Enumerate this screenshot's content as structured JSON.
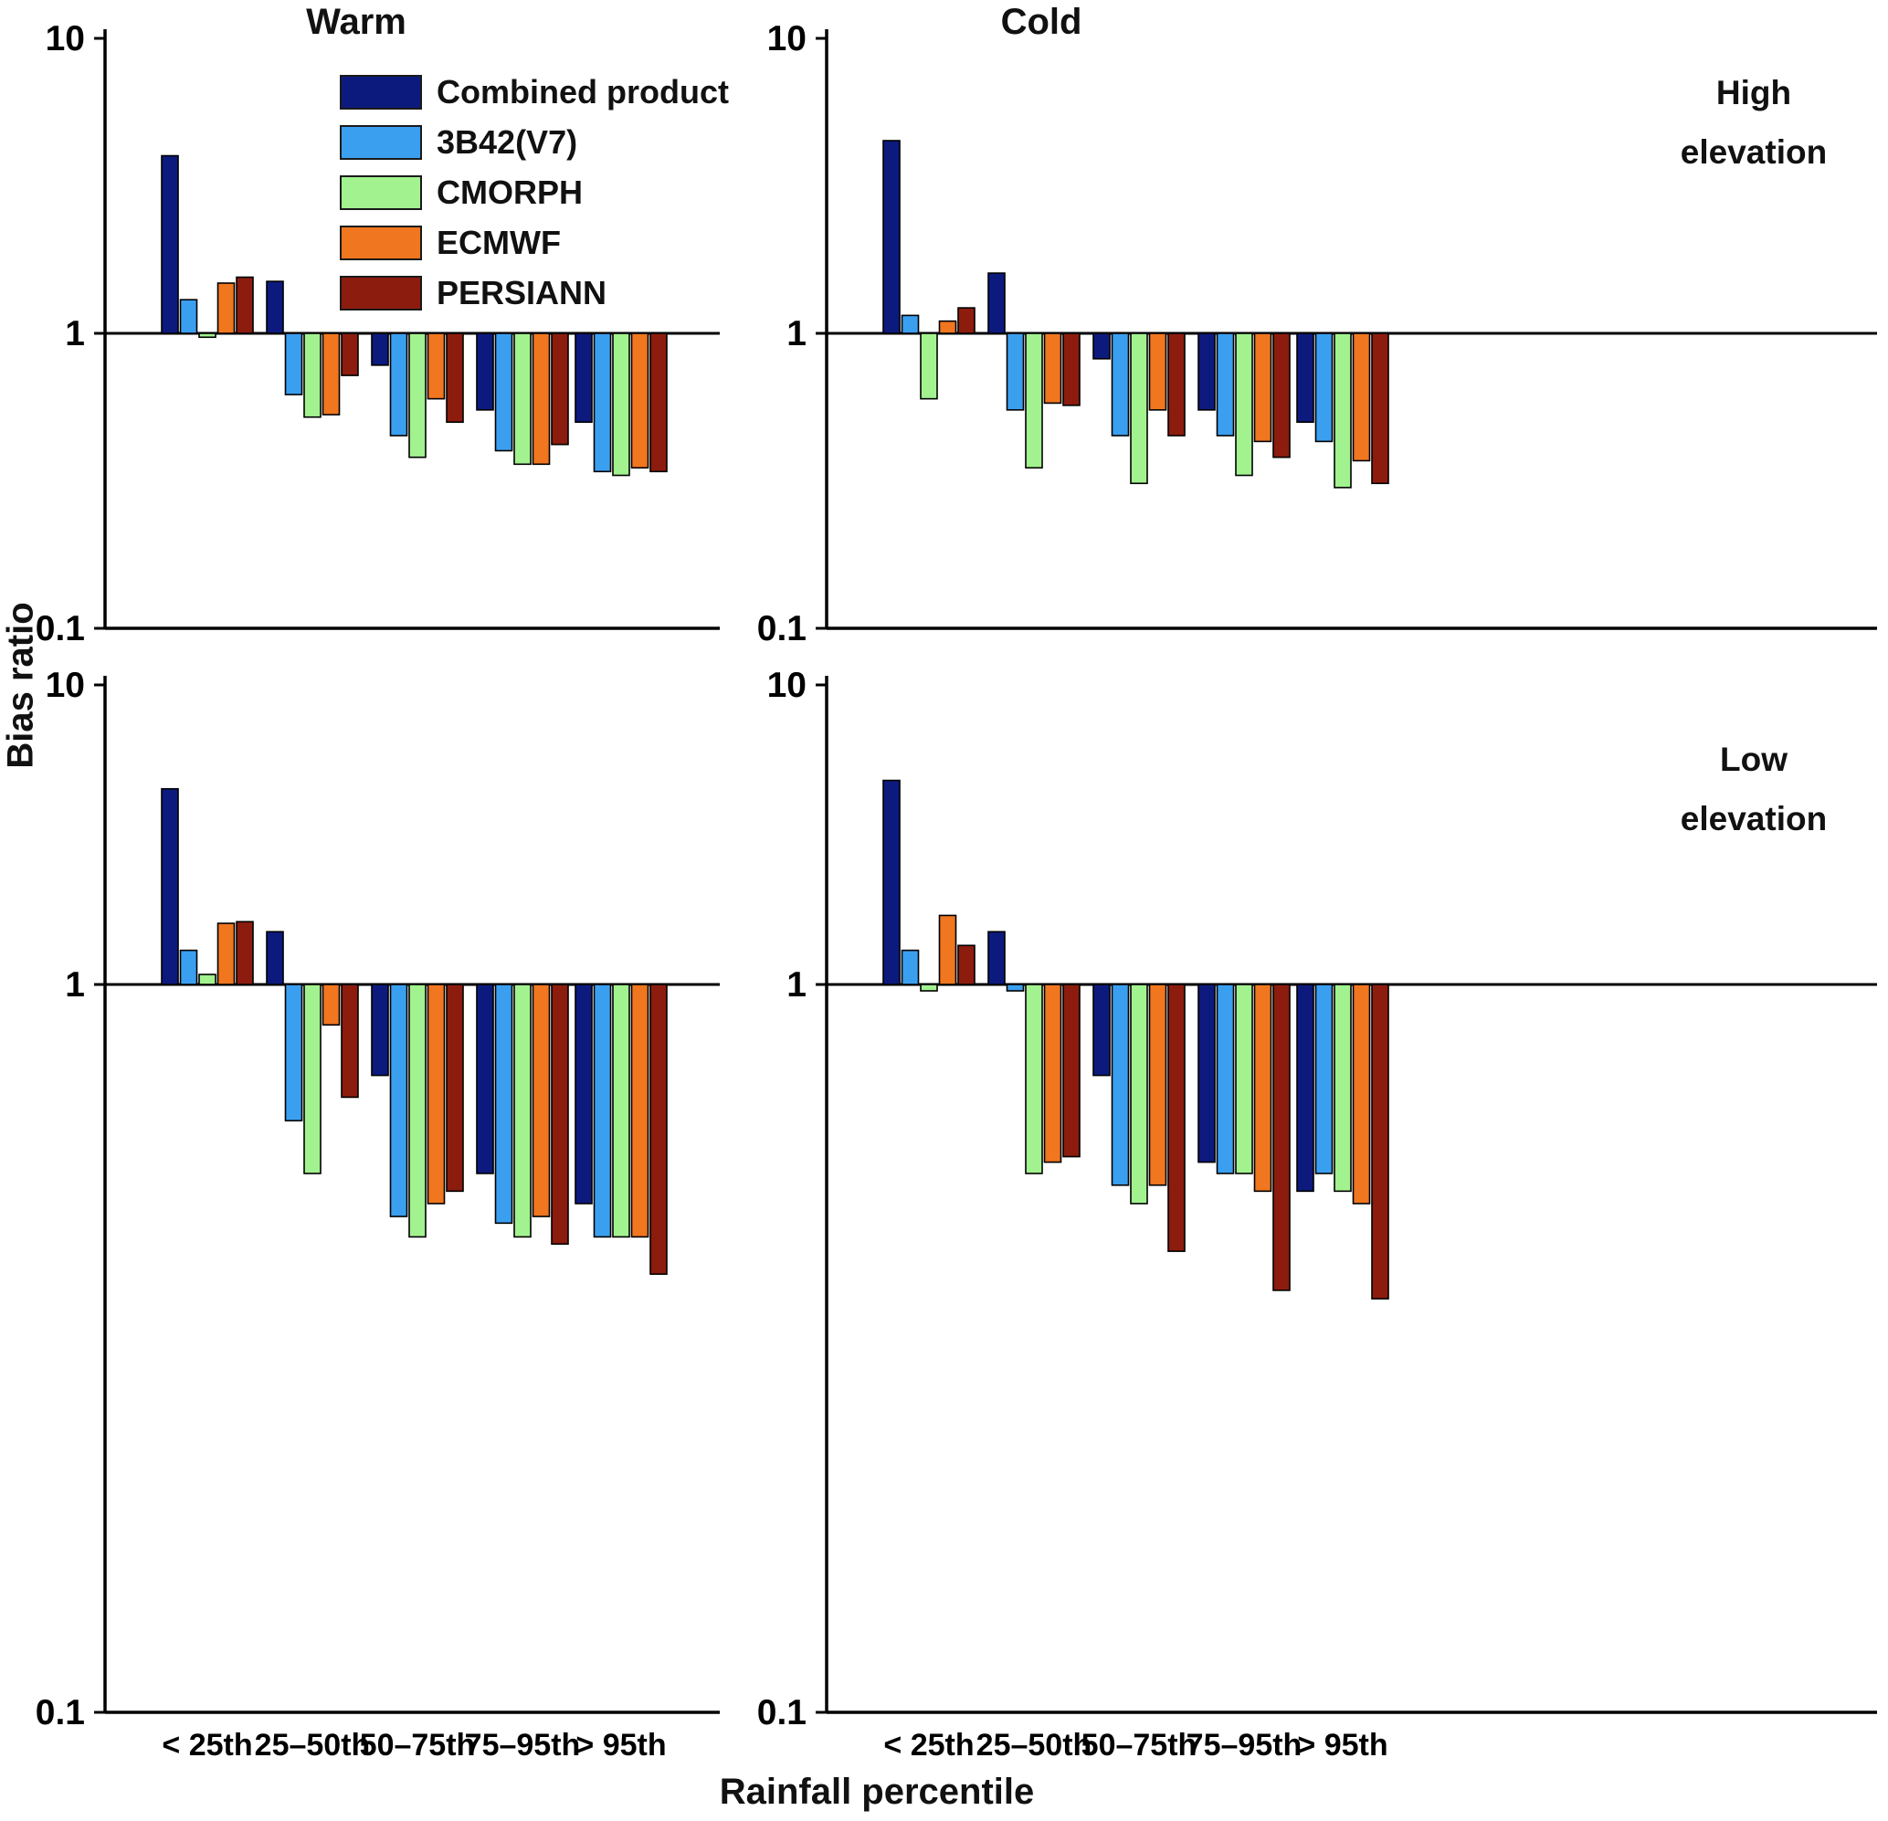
{
  "figure": {
    "ylabel": "Bias ratio",
    "xlabel": "Rainfall percentile"
  },
  "legend": {
    "position": "inside-top-left-panel",
    "items": [
      {
        "label": "Combined product",
        "color": "#0d1a7d"
      },
      {
        "label": "3B42(V7)",
        "color": "#3b9ff0"
      },
      {
        "label": "CMORPH",
        "color": "#a2f28f"
      },
      {
        "label": "ECMWF",
        "color": "#f0761f"
      },
      {
        "label": "PERSIANN",
        "color": "#8c1c0e"
      }
    ]
  },
  "chart_data": [
    {
      "type": "bar",
      "title": "Warm",
      "annotation_lines": [],
      "scale": "log",
      "ylim": [
        0.1,
        10
      ],
      "yticks": [
        10,
        1,
        0.1
      ],
      "baseline": 1,
      "grid": false,
      "legend_position": "inside-upper-middle",
      "categories": [
        "< 25th",
        "25–50th",
        "50–75th",
        "75–95th",
        "> 95th"
      ],
      "show_x_tick_labels": false,
      "series": [
        {
          "name": "Combined product",
          "values": [
            4.0,
            1.5,
            0.78,
            0.55,
            0.5
          ]
        },
        {
          "name": "3B42(V7)",
          "values": [
            1.3,
            0.62,
            0.45,
            0.4,
            0.34
          ]
        },
        {
          "name": "CMORPH",
          "values": [
            0.97,
            0.52,
            0.38,
            0.36,
            0.33
          ]
        },
        {
          "name": "ECMWF",
          "values": [
            1.48,
            0.53,
            0.6,
            0.36,
            0.35
          ]
        },
        {
          "name": "PERSIANN",
          "values": [
            1.55,
            0.72,
            0.5,
            0.42,
            0.34
          ]
        }
      ]
    },
    {
      "type": "bar",
      "title": "Cold",
      "annotation_lines": [
        "High",
        "elevation"
      ],
      "scale": "log",
      "ylim": [
        0.1,
        10
      ],
      "yticks": [
        10,
        1,
        0.1
      ],
      "baseline": 1,
      "grid": false,
      "categories": [
        "< 25th",
        "25–50th",
        "50–75th",
        "75–95th",
        "> 95th"
      ],
      "show_x_tick_labels": false,
      "series": [
        {
          "name": "Combined product",
          "values": [
            4.5,
            1.6,
            0.82,
            0.55,
            0.5
          ]
        },
        {
          "name": "3B42(V7)",
          "values": [
            1.15,
            0.55,
            0.45,
            0.45,
            0.43
          ]
        },
        {
          "name": "CMORPH",
          "values": [
            0.6,
            0.35,
            0.31,
            0.33,
            0.3
          ]
        },
        {
          "name": "ECMWF",
          "values": [
            1.1,
            0.58,
            0.55,
            0.43,
            0.37
          ]
        },
        {
          "name": "PERSIANN",
          "values": [
            1.22,
            0.57,
            0.45,
            0.38,
            0.31
          ]
        }
      ]
    },
    {
      "type": "bar",
      "title": "",
      "annotation_lines": [],
      "scale": "log",
      "ylim": [
        0.1,
        10
      ],
      "yticks": [
        10,
        1,
        0.1
      ],
      "baseline": 1,
      "grid": false,
      "categories": [
        "< 25th",
        "25–50th",
        "50–75th",
        "75–95th",
        "> 95th"
      ],
      "show_x_tick_labels": true,
      "series": [
        {
          "name": "Combined product",
          "values": [
            4.5,
            1.5,
            0.75,
            0.55,
            0.5
          ]
        },
        {
          "name": "3B42(V7)",
          "values": [
            1.3,
            0.65,
            0.48,
            0.47,
            0.45
          ]
        },
        {
          "name": "CMORPH",
          "values": [
            1.08,
            0.55,
            0.45,
            0.45,
            0.45
          ]
        },
        {
          "name": "ECMWF",
          "values": [
            1.6,
            0.88,
            0.5,
            0.48,
            0.45
          ]
        },
        {
          "name": "PERSIANN",
          "values": [
            1.62,
            0.7,
            0.52,
            0.44,
            0.4
          ]
        }
      ]
    },
    {
      "type": "bar",
      "title": "",
      "annotation_lines": [
        "Low",
        "elevation"
      ],
      "scale": "log",
      "ylim": [
        0.1,
        10
      ],
      "yticks": [
        10,
        1,
        0.1
      ],
      "baseline": 1,
      "grid": false,
      "categories": [
        "< 25th",
        "25–50th",
        "50–75th",
        "75–95th",
        "> 95th"
      ],
      "show_x_tick_labels": true,
      "series": [
        {
          "name": "Combined product",
          "values": [
            4.8,
            1.5,
            0.75,
            0.57,
            0.52
          ]
        },
        {
          "name": "3B42(V7)",
          "values": [
            1.3,
            0.98,
            0.53,
            0.55,
            0.55
          ]
        },
        {
          "name": "CMORPH",
          "values": [
            0.98,
            0.55,
            0.5,
            0.55,
            0.52
          ]
        },
        {
          "name": "ECMWF",
          "values": [
            1.7,
            0.57,
            0.53,
            0.52,
            0.5
          ]
        },
        {
          "name": "PERSIANN",
          "values": [
            1.35,
            0.58,
            0.43,
            0.38,
            0.37
          ]
        }
      ]
    }
  ]
}
